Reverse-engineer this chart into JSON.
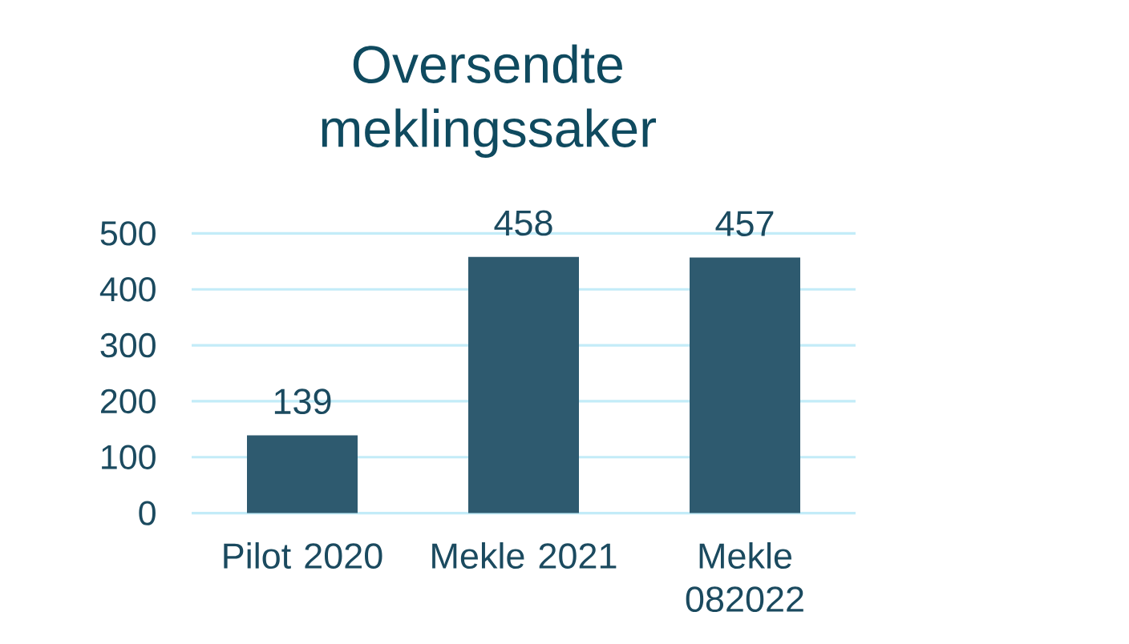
{
  "chart_data": {
    "type": "bar",
    "title": "Oversendte meklingssaker",
    "categories": [
      "Pilot 2020",
      "Mekle 2021",
      "Mekle 082022"
    ],
    "values": [
      139,
      458,
      457
    ],
    "color": "#2e5a6f",
    "ylim": [
      0,
      500
    ],
    "yticks": [
      0,
      100,
      200,
      300,
      400,
      500
    ],
    "grid": "y",
    "data_labels": true
  }
}
